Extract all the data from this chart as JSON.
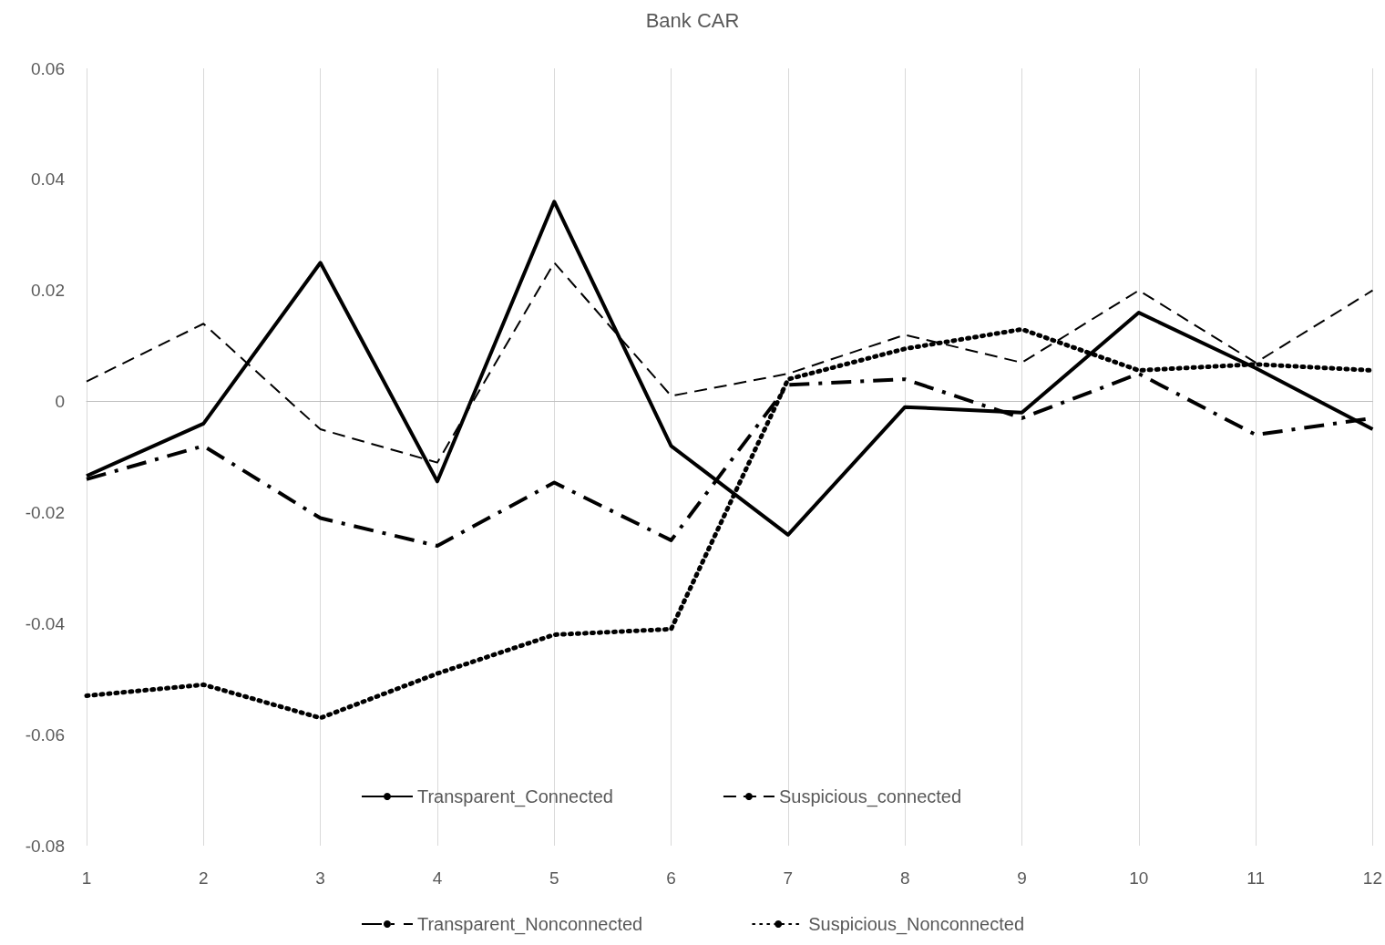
{
  "chart_data": {
    "type": "line",
    "title": "Bank CAR",
    "categories": [
      "1",
      "2",
      "3",
      "4",
      "5",
      "6",
      "7",
      "8",
      "9",
      "10",
      "11",
      "12"
    ],
    "series": [
      {
        "name": "Transparent_Connected",
        "color": "#000000",
        "line_style": "solid",
        "values": [
          -0.0134,
          -0.004,
          0.025,
          -0.0144,
          0.036,
          -0.008,
          -0.024,
          -0.001,
          -0.002,
          0.016,
          0.006,
          -0.005
        ]
      },
      {
        "name": "Suspicious_connected",
        "color": "#000000",
        "line_style": "dashed",
        "values": [
          0.0036,
          0.014,
          -0.005,
          -0.011,
          0.025,
          0.001,
          0.005,
          0.012,
          0.007,
          0.02,
          0.007,
          0.02
        ]
      },
      {
        "name": "Transparent_Nonconnected",
        "color": "#000000",
        "line_style": "dashdot",
        "values": [
          -0.014,
          -0.008,
          -0.021,
          -0.026,
          -0.0146,
          -0.025,
          0.003,
          0.004,
          -0.003,
          0.005,
          -0.006,
          -0.003
        ]
      },
      {
        "name": "Suspicious_Nonconnected",
        "color": "#000000",
        "line_style": "dotted",
        "values": [
          -0.053,
          -0.051,
          -0.057,
          -0.049,
          -0.042,
          -0.041,
          0.004,
          0.0095,
          0.013,
          0.0056,
          0.0067,
          0.0056
        ]
      }
    ],
    "ylim": [
      -0.08,
      0.06
    ],
    "yticks": [
      -0.08,
      -0.06,
      -0.04,
      -0.02,
      0,
      0.02,
      0.04,
      0.06
    ],
    "grid": "x",
    "legend": "bottom",
    "marker": "none"
  }
}
